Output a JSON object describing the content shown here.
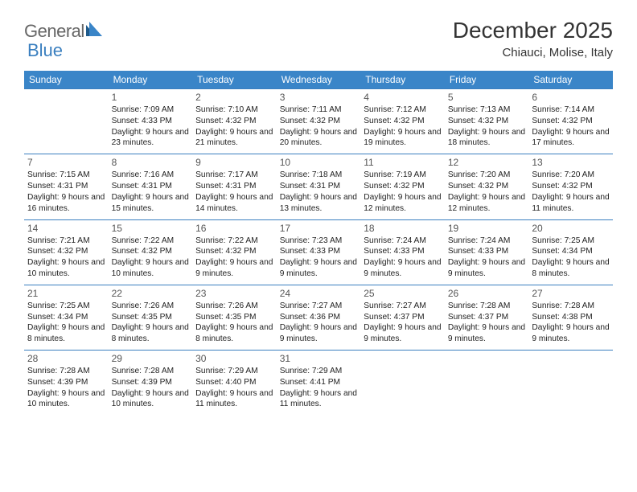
{
  "logo": {
    "text1": "General",
    "text2": "Blue",
    "tri_color_dark": "#1f5a8a",
    "tri_color_light": "#3a85c8"
  },
  "header": {
    "title": "December 2025",
    "subtitle": "Chiauci, Molise, Italy"
  },
  "colors": {
    "header_bg": "#3a85c8",
    "header_text": "#ffffff",
    "rule": "#3a7fbf",
    "text": "#222222",
    "daynum": "#555555",
    "background": "#ffffff"
  },
  "typography": {
    "title_fontsize": 28,
    "subtitle_fontsize": 15,
    "weekday_fontsize": 12,
    "cell_fontsize": 10.5,
    "font_family": "Arial"
  },
  "calendar": {
    "weekdays": [
      "Sunday",
      "Monday",
      "Tuesday",
      "Wednesday",
      "Thursday",
      "Friday",
      "Saturday"
    ],
    "weeks": [
      [
        null,
        {
          "day": "1",
          "sunrise": "Sunrise: 7:09 AM",
          "sunset": "Sunset: 4:33 PM",
          "daylight": "Daylight: 9 hours and 23 minutes."
        },
        {
          "day": "2",
          "sunrise": "Sunrise: 7:10 AM",
          "sunset": "Sunset: 4:32 PM",
          "daylight": "Daylight: 9 hours and 21 minutes."
        },
        {
          "day": "3",
          "sunrise": "Sunrise: 7:11 AM",
          "sunset": "Sunset: 4:32 PM",
          "daylight": "Daylight: 9 hours and 20 minutes."
        },
        {
          "day": "4",
          "sunrise": "Sunrise: 7:12 AM",
          "sunset": "Sunset: 4:32 PM",
          "daylight": "Daylight: 9 hours and 19 minutes."
        },
        {
          "day": "5",
          "sunrise": "Sunrise: 7:13 AM",
          "sunset": "Sunset: 4:32 PM",
          "daylight": "Daylight: 9 hours and 18 minutes."
        },
        {
          "day": "6",
          "sunrise": "Sunrise: 7:14 AM",
          "sunset": "Sunset: 4:32 PM",
          "daylight": "Daylight: 9 hours and 17 minutes."
        }
      ],
      [
        {
          "day": "7",
          "sunrise": "Sunrise: 7:15 AM",
          "sunset": "Sunset: 4:31 PM",
          "daylight": "Daylight: 9 hours and 16 minutes."
        },
        {
          "day": "8",
          "sunrise": "Sunrise: 7:16 AM",
          "sunset": "Sunset: 4:31 PM",
          "daylight": "Daylight: 9 hours and 15 minutes."
        },
        {
          "day": "9",
          "sunrise": "Sunrise: 7:17 AM",
          "sunset": "Sunset: 4:31 PM",
          "daylight": "Daylight: 9 hours and 14 minutes."
        },
        {
          "day": "10",
          "sunrise": "Sunrise: 7:18 AM",
          "sunset": "Sunset: 4:31 PM",
          "daylight": "Daylight: 9 hours and 13 minutes."
        },
        {
          "day": "11",
          "sunrise": "Sunrise: 7:19 AM",
          "sunset": "Sunset: 4:32 PM",
          "daylight": "Daylight: 9 hours and 12 minutes."
        },
        {
          "day": "12",
          "sunrise": "Sunrise: 7:20 AM",
          "sunset": "Sunset: 4:32 PM",
          "daylight": "Daylight: 9 hours and 12 minutes."
        },
        {
          "day": "13",
          "sunrise": "Sunrise: 7:20 AM",
          "sunset": "Sunset: 4:32 PM",
          "daylight": "Daylight: 9 hours and 11 minutes."
        }
      ],
      [
        {
          "day": "14",
          "sunrise": "Sunrise: 7:21 AM",
          "sunset": "Sunset: 4:32 PM",
          "daylight": "Daylight: 9 hours and 10 minutes."
        },
        {
          "day": "15",
          "sunrise": "Sunrise: 7:22 AM",
          "sunset": "Sunset: 4:32 PM",
          "daylight": "Daylight: 9 hours and 10 minutes."
        },
        {
          "day": "16",
          "sunrise": "Sunrise: 7:22 AM",
          "sunset": "Sunset: 4:32 PM",
          "daylight": "Daylight: 9 hours and 9 minutes."
        },
        {
          "day": "17",
          "sunrise": "Sunrise: 7:23 AM",
          "sunset": "Sunset: 4:33 PM",
          "daylight": "Daylight: 9 hours and 9 minutes."
        },
        {
          "day": "18",
          "sunrise": "Sunrise: 7:24 AM",
          "sunset": "Sunset: 4:33 PM",
          "daylight": "Daylight: 9 hours and 9 minutes."
        },
        {
          "day": "19",
          "sunrise": "Sunrise: 7:24 AM",
          "sunset": "Sunset: 4:33 PM",
          "daylight": "Daylight: 9 hours and 9 minutes."
        },
        {
          "day": "20",
          "sunrise": "Sunrise: 7:25 AM",
          "sunset": "Sunset: 4:34 PM",
          "daylight": "Daylight: 9 hours and 8 minutes."
        }
      ],
      [
        {
          "day": "21",
          "sunrise": "Sunrise: 7:25 AM",
          "sunset": "Sunset: 4:34 PM",
          "daylight": "Daylight: 9 hours and 8 minutes."
        },
        {
          "day": "22",
          "sunrise": "Sunrise: 7:26 AM",
          "sunset": "Sunset: 4:35 PM",
          "daylight": "Daylight: 9 hours and 8 minutes."
        },
        {
          "day": "23",
          "sunrise": "Sunrise: 7:26 AM",
          "sunset": "Sunset: 4:35 PM",
          "daylight": "Daylight: 9 hours and 8 minutes."
        },
        {
          "day": "24",
          "sunrise": "Sunrise: 7:27 AM",
          "sunset": "Sunset: 4:36 PM",
          "daylight": "Daylight: 9 hours and 9 minutes."
        },
        {
          "day": "25",
          "sunrise": "Sunrise: 7:27 AM",
          "sunset": "Sunset: 4:37 PM",
          "daylight": "Daylight: 9 hours and 9 minutes."
        },
        {
          "day": "26",
          "sunrise": "Sunrise: 7:28 AM",
          "sunset": "Sunset: 4:37 PM",
          "daylight": "Daylight: 9 hours and 9 minutes."
        },
        {
          "day": "27",
          "sunrise": "Sunrise: 7:28 AM",
          "sunset": "Sunset: 4:38 PM",
          "daylight": "Daylight: 9 hours and 9 minutes."
        }
      ],
      [
        {
          "day": "28",
          "sunrise": "Sunrise: 7:28 AM",
          "sunset": "Sunset: 4:39 PM",
          "daylight": "Daylight: 9 hours and 10 minutes."
        },
        {
          "day": "29",
          "sunrise": "Sunrise: 7:28 AM",
          "sunset": "Sunset: 4:39 PM",
          "daylight": "Daylight: 9 hours and 10 minutes."
        },
        {
          "day": "30",
          "sunrise": "Sunrise: 7:29 AM",
          "sunset": "Sunset: 4:40 PM",
          "daylight": "Daylight: 9 hours and 11 minutes."
        },
        {
          "day": "31",
          "sunrise": "Sunrise: 7:29 AM",
          "sunset": "Sunset: 4:41 PM",
          "daylight": "Daylight: 9 hours and 11 minutes."
        },
        null,
        null,
        null
      ]
    ]
  }
}
